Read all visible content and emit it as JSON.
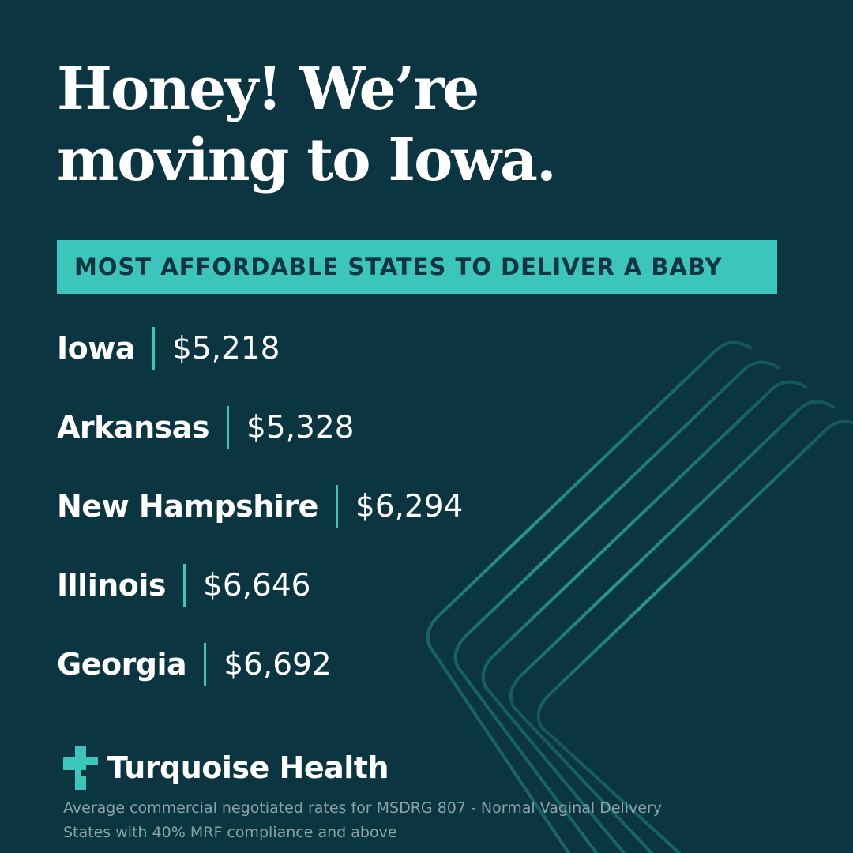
{
  "headline": {
    "line1": "Honey! We’re",
    "line2": "moving to Iowa."
  },
  "subtitle": "MOST AFFORDABLE STATES TO DELIVER A BABY",
  "rankings": [
    {
      "state": "Iowa",
      "price": "$5,218"
    },
    {
      "state": "Arkansas",
      "price": "$5,328"
    },
    {
      "state": "New Hampshire",
      "price": "$6,294"
    },
    {
      "state": "Illinois",
      "price": "$6,646"
    },
    {
      "state": "Georgia",
      "price": "$6,692"
    }
  ],
  "brand": {
    "name": "Turquoise Health",
    "logo_icon": "plus-cross-icon"
  },
  "footnotes": [
    "Average commercial negotiated rates for MSDRG 807 - Normal Vaginal Delivery",
    "States with 40% MRF compliance and above"
  ],
  "colors": {
    "background": "#0b3540",
    "accent": "#3cc5bb",
    "text": "#ffffff",
    "footnote": "#8aa3a8"
  }
}
